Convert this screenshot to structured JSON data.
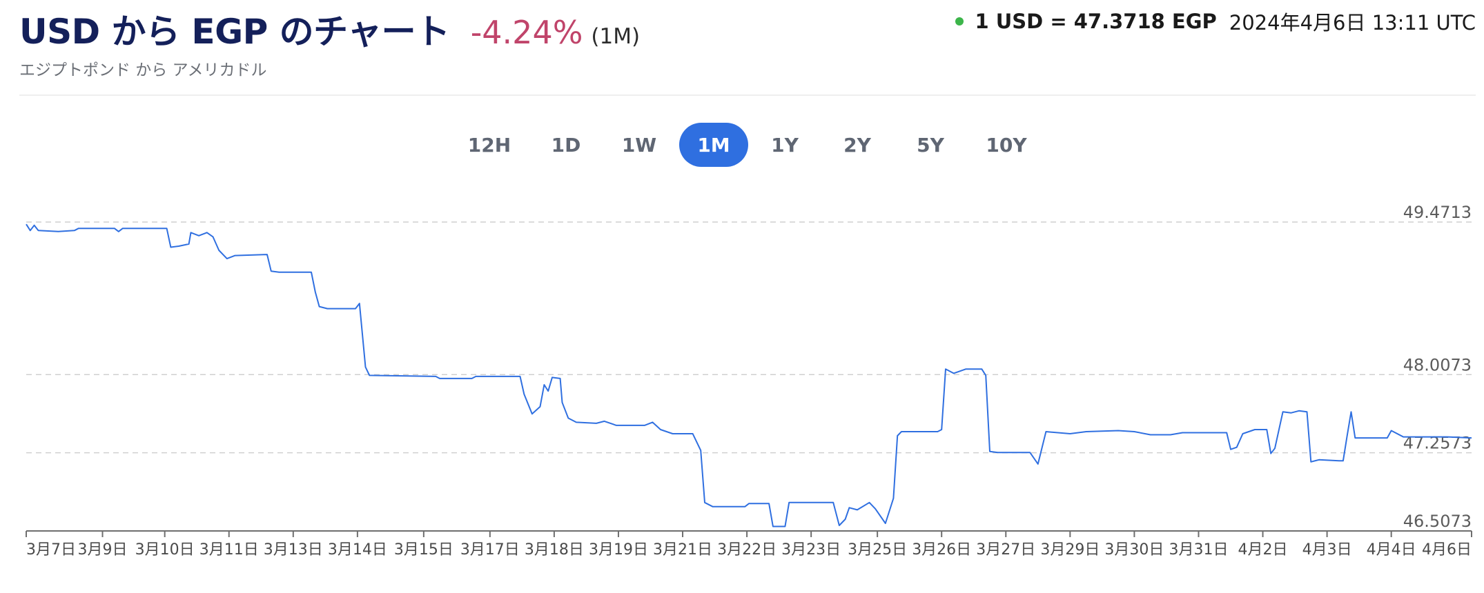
{
  "header": {
    "title": "USD から EGP のチャート",
    "change": "-4.24%",
    "period": "(1M)",
    "subtitle": "エジプトポンド から アメリカドル",
    "rate": "1 USD = 47.3718 EGP",
    "timestamp": "2024年4月6日 13:11 UTC"
  },
  "colors": {
    "accent": "#2f6fe0",
    "line": "#2f6fe0",
    "negative": "#c0446a",
    "live": "#3cb54a",
    "title": "#14205a"
  },
  "ranges": [
    {
      "label": "12H",
      "active": false
    },
    {
      "label": "1D",
      "active": false
    },
    {
      "label": "1W",
      "active": false
    },
    {
      "label": "1M",
      "active": true
    },
    {
      "label": "1Y",
      "active": false
    },
    {
      "label": "2Y",
      "active": false
    },
    {
      "label": "5Y",
      "active": false
    },
    {
      "label": "10Y",
      "active": false
    }
  ],
  "chart_data": {
    "type": "line",
    "title": "",
    "xlabel": "",
    "ylabel": "",
    "ylim": [
      46.5073,
      49.4713
    ],
    "xlim": [
      "2024-03-07",
      "2024-04-06"
    ],
    "grid": true,
    "y_ticks": [
      "49.4713",
      "48.0073",
      "47.2573",
      "46.5073"
    ],
    "x_ticks": [
      {
        "label": "3月7日",
        "date": "2024-03-07"
      },
      {
        "label": "3月9日",
        "date": "2024-03-08T14:00"
      },
      {
        "label": "3月10日",
        "date": "2024-03-09T21:00"
      },
      {
        "label": "3月11日",
        "date": "2024-03-11T05:00"
      },
      {
        "label": "3月13日",
        "date": "2024-03-12T13:00"
      },
      {
        "label": "3月14日",
        "date": "2024-03-13T21:00"
      },
      {
        "label": "3月15日",
        "date": "2024-03-15T06:00"
      },
      {
        "label": "3月17日",
        "date": "2024-03-16T15:00"
      },
      {
        "label": "3月18日",
        "date": "2024-03-17T23:00"
      },
      {
        "label": "3月19日",
        "date": "2024-03-19T07:00"
      },
      {
        "label": "3月21日",
        "date": "2024-03-20T15:00"
      },
      {
        "label": "3月22日",
        "date": "2024-03-21T23:00"
      },
      {
        "label": "3月23日",
        "date": "2024-03-23T07:00"
      },
      {
        "label": "3月25日",
        "date": "2024-03-24T16:00"
      },
      {
        "label": "3月26日",
        "date": "2024-03-26T00:00"
      },
      {
        "label": "3月27日",
        "date": "2024-03-27T08:00"
      },
      {
        "label": "3月29日",
        "date": "2024-03-28T16:00"
      },
      {
        "label": "3月30日",
        "date": "2024-03-30T00:00"
      },
      {
        "label": "3月31日",
        "date": "2024-03-31T08:00"
      },
      {
        "label": "4月2日",
        "date": "2024-04-01T16:00"
      },
      {
        "label": "4月3日",
        "date": "2024-04-03T00:00"
      },
      {
        "label": "4月4日",
        "date": "2024-04-04T08:00"
      },
      {
        "label": "4月6日",
        "date": "2024-04-06"
      }
    ],
    "series": [
      {
        "name": "",
        "points": [
          [
            "2024-03-07T00:00",
            49.45
          ],
          [
            "2024-03-07T02:00",
            49.39
          ],
          [
            "2024-03-07T04:00",
            49.44
          ],
          [
            "2024-03-07T06:00",
            49.39
          ],
          [
            "2024-03-07T16:00",
            49.38
          ],
          [
            "2024-03-08T00:00",
            49.39
          ],
          [
            "2024-03-08T02:00",
            49.41
          ],
          [
            "2024-03-08T20:00",
            49.41
          ],
          [
            "2024-03-08T22:00",
            49.38
          ],
          [
            "2024-03-09T00:00",
            49.41
          ],
          [
            "2024-03-09T22:00",
            49.41
          ],
          [
            "2024-03-10T00:00",
            49.23
          ],
          [
            "2024-03-10T04:00",
            49.24
          ],
          [
            "2024-03-10T09:00",
            49.26
          ],
          [
            "2024-03-10T10:00",
            49.37
          ],
          [
            "2024-03-10T14:00",
            49.34
          ],
          [
            "2024-03-10T18:00",
            49.37
          ],
          [
            "2024-03-10T21:00",
            49.33
          ],
          [
            "2024-03-11T00:00",
            49.2
          ],
          [
            "2024-03-11T04:00",
            49.12
          ],
          [
            "2024-03-11T08:00",
            49.15
          ],
          [
            "2024-03-12T00:00",
            49.16
          ],
          [
            "2024-03-12T02:00",
            49.0
          ],
          [
            "2024-03-12T06:00",
            48.99
          ],
          [
            "2024-03-12T22:00",
            48.99
          ],
          [
            "2024-03-13T00:00",
            48.8
          ],
          [
            "2024-03-13T02:00",
            48.66
          ],
          [
            "2024-03-13T06:00",
            48.64
          ],
          [
            "2024-03-13T20:00",
            48.64
          ],
          [
            "2024-03-13T22:00",
            48.69
          ],
          [
            "2024-03-14T01:00",
            48.08
          ],
          [
            "2024-03-14T03:00",
            48.0
          ],
          [
            "2024-03-15T12:00",
            47.99
          ],
          [
            "2024-03-15T14:00",
            47.97
          ],
          [
            "2024-03-16T06:00",
            47.97
          ],
          [
            "2024-03-16T08:00",
            47.99
          ],
          [
            "2024-03-17T06:00",
            47.99
          ],
          [
            "2024-03-17T08:00",
            47.82
          ],
          [
            "2024-03-17T12:00",
            47.63
          ],
          [
            "2024-03-17T16:00",
            47.7
          ],
          [
            "2024-03-17T18:00",
            47.91
          ],
          [
            "2024-03-17T20:00",
            47.85
          ],
          [
            "2024-03-17T22:00",
            47.98
          ],
          [
            "2024-03-18T02:00",
            47.97
          ],
          [
            "2024-03-18T03:00",
            47.74
          ],
          [
            "2024-03-18T06:00",
            47.59
          ],
          [
            "2024-03-18T10:00",
            47.55
          ],
          [
            "2024-03-18T20:00",
            47.54
          ],
          [
            "2024-03-19T00:00",
            47.56
          ],
          [
            "2024-03-19T06:00",
            47.52
          ],
          [
            "2024-03-19T20:00",
            47.52
          ],
          [
            "2024-03-20T00:00",
            47.55
          ],
          [
            "2024-03-20T04:00",
            47.48
          ],
          [
            "2024-03-20T10:00",
            47.44
          ],
          [
            "2024-03-20T20:00",
            47.44
          ],
          [
            "2024-03-21T00:00",
            47.28
          ],
          [
            "2024-03-21T02:00",
            46.78
          ],
          [
            "2024-03-21T06:00",
            46.74
          ],
          [
            "2024-03-21T22:00",
            46.74
          ],
          [
            "2024-03-22T00:00",
            46.77
          ],
          [
            "2024-03-22T10:00",
            46.77
          ],
          [
            "2024-03-22T12:00",
            46.55
          ],
          [
            "2024-03-22T18:00",
            46.55
          ],
          [
            "2024-03-22T20:00",
            46.78
          ],
          [
            "2024-03-23T18:00",
            46.78
          ],
          [
            "2024-03-23T21:00",
            46.56
          ],
          [
            "2024-03-24T00:00",
            46.62
          ],
          [
            "2024-03-24T02:00",
            46.73
          ],
          [
            "2024-03-24T06:00",
            46.71
          ],
          [
            "2024-03-24T12:00",
            46.78
          ],
          [
            "2024-03-24T15:00",
            46.72
          ],
          [
            "2024-03-24T20:00",
            46.58
          ],
          [
            "2024-03-25T00:00",
            46.82
          ],
          [
            "2024-03-25T02:00",
            47.42
          ],
          [
            "2024-03-25T04:00",
            47.46
          ],
          [
            "2024-03-25T22:00",
            47.46
          ],
          [
            "2024-03-26T00:00",
            47.48
          ],
          [
            "2024-03-26T02:00",
            48.06
          ],
          [
            "2024-03-26T06:00",
            48.02
          ],
          [
            "2024-03-26T12:00",
            48.06
          ],
          [
            "2024-03-26T20:00",
            48.06
          ],
          [
            "2024-03-26T22:00",
            48.0
          ],
          [
            "2024-03-27T00:00",
            47.27
          ],
          [
            "2024-03-27T04:00",
            47.26
          ],
          [
            "2024-03-27T20:00",
            47.26
          ],
          [
            "2024-03-28T00:00",
            47.15
          ],
          [
            "2024-03-28T04:00",
            47.46
          ],
          [
            "2024-03-28T16:00",
            47.44
          ],
          [
            "2024-03-29T00:00",
            47.46
          ],
          [
            "2024-03-29T16:00",
            47.47
          ],
          [
            "2024-03-30T00:00",
            47.46
          ],
          [
            "2024-03-30T08:00",
            47.43
          ],
          [
            "2024-03-30T18:00",
            47.43
          ],
          [
            "2024-03-31T00:00",
            47.45
          ],
          [
            "2024-03-31T22:00",
            47.45
          ],
          [
            "2024-04-01T00:00",
            47.29
          ],
          [
            "2024-04-01T03:00",
            47.31
          ],
          [
            "2024-04-01T06:00",
            47.44
          ],
          [
            "2024-04-01T12:00",
            47.48
          ],
          [
            "2024-04-01T18:00",
            47.48
          ],
          [
            "2024-04-01T20:00",
            47.25
          ],
          [
            "2024-04-01T22:00",
            47.3
          ],
          [
            "2024-04-02T02:00",
            47.65
          ],
          [
            "2024-04-02T06:00",
            47.64
          ],
          [
            "2024-04-02T10:00",
            47.66
          ],
          [
            "2024-04-02T14:00",
            47.65
          ],
          [
            "2024-04-02T16:00",
            47.17
          ],
          [
            "2024-04-02T20:00",
            47.19
          ],
          [
            "2024-04-03T06:00",
            47.18
          ],
          [
            "2024-04-03T08:00",
            47.18
          ],
          [
            "2024-04-03T10:00",
            47.42
          ],
          [
            "2024-04-03T12:00",
            47.65
          ],
          [
            "2024-04-03T14:00",
            47.4
          ],
          [
            "2024-04-04T06:00",
            47.4
          ],
          [
            "2024-04-04T08:00",
            47.47
          ],
          [
            "2024-04-04T14:00",
            47.41
          ],
          [
            "2024-04-05T12:00",
            47.41
          ],
          [
            "2024-04-06T00:00",
            47.4
          ]
        ]
      }
    ]
  }
}
